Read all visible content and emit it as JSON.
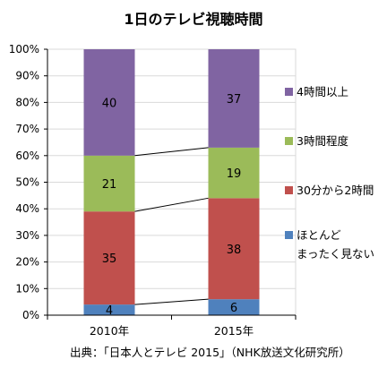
{
  "title": "1日のテレビ視聴時間",
  "footer": "出典：「日本人とテレビ 2015」（NHK放送文化研究所）",
  "chart_data": {
    "type": "bar",
    "stacked": true,
    "percent": true,
    "categories": [
      "2010年",
      "2015年"
    ],
    "ylim": [
      0,
      100
    ],
    "yticks": [
      "0%",
      "10%",
      "20%",
      "30%",
      "40%",
      "50%",
      "60%",
      "70%",
      "80%",
      "90%",
      "100%"
    ],
    "grid": true,
    "legend_position": "right",
    "series": [
      {
        "name": "ほとんど\nまったく見ない",
        "values": [
          4,
          6
        ],
        "labels": [
          "4",
          "6"
        ],
        "color": "#4f81bd"
      },
      {
        "name": "30分から2時間",
        "values": [
          35,
          38
        ],
        "labels": [
          "35",
          "38"
        ],
        "color": "#c0504d"
      },
      {
        "name": "3時間程度",
        "values": [
          21,
          19
        ],
        "labels": [
          "21",
          "19"
        ],
        "color": "#9bbb59"
      },
      {
        "name": "4時間以上",
        "values": [
          40,
          37
        ],
        "labels": [
          "40",
          "37"
        ],
        "color": "#8064a2"
      }
    ],
    "connector_lines": true
  }
}
